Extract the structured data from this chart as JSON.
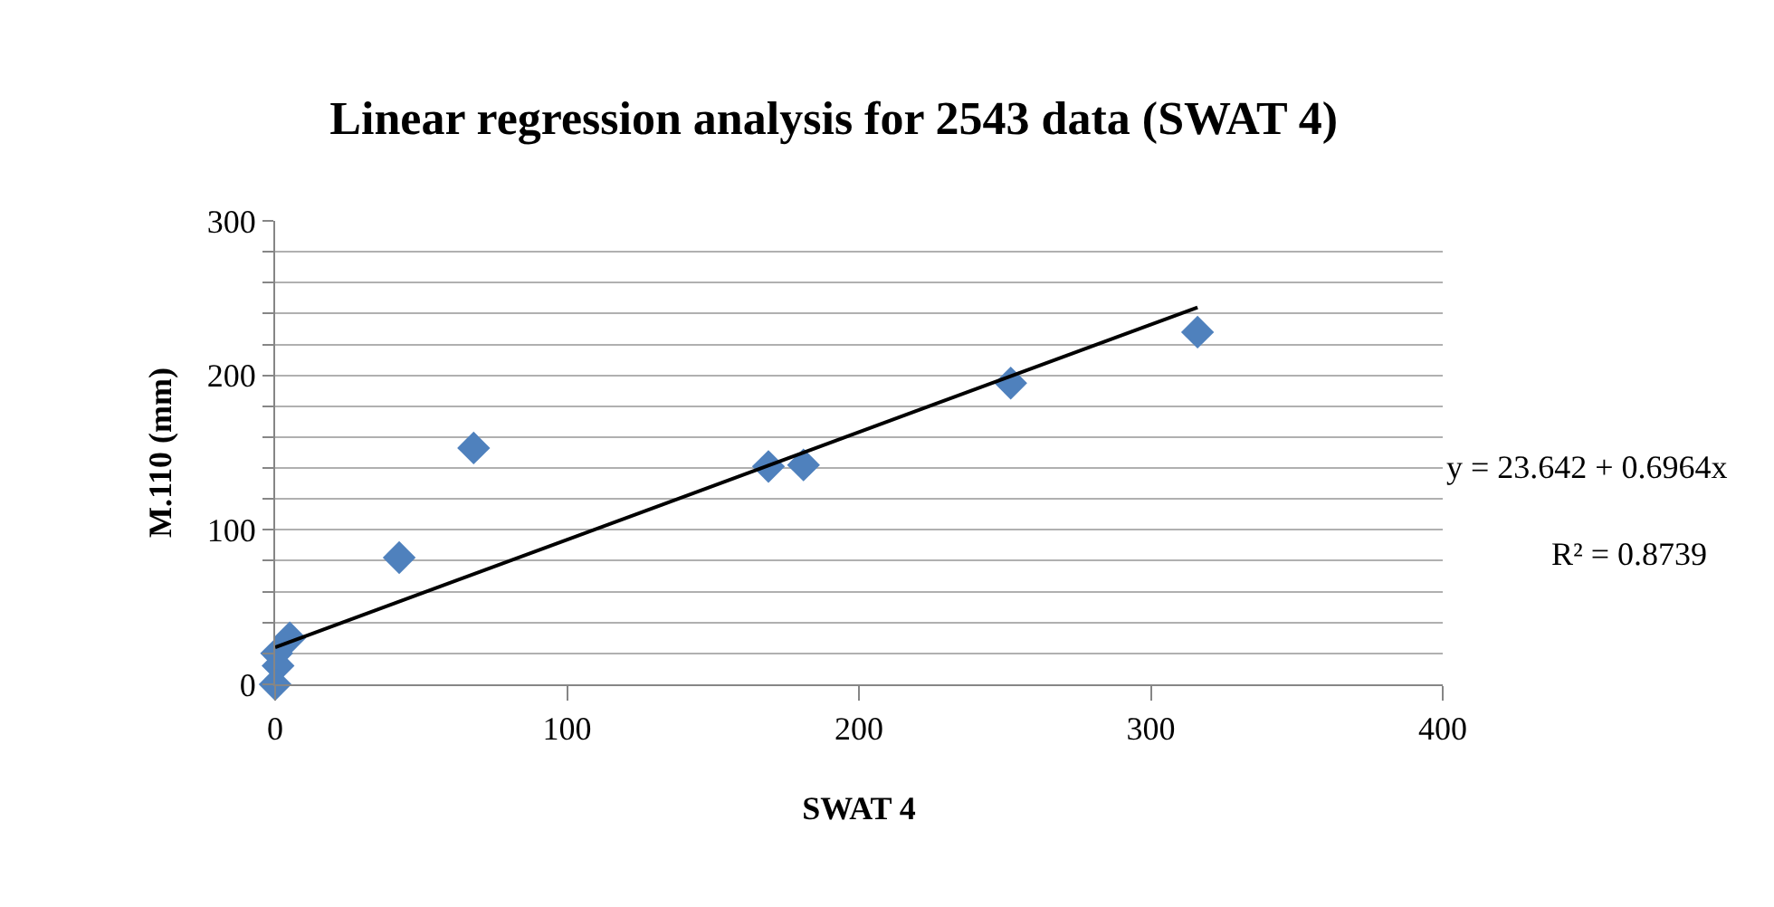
{
  "chart_data": {
    "type": "scatter",
    "title": "Linear regression analysis for 2543 data (SWAT 4)",
    "xlabel": "SWAT 4",
    "ylabel": "M.110 (mm)",
    "x": [
      0,
      1,
      0.5,
      5,
      42.5,
      68,
      169,
      181,
      252,
      316
    ],
    "series": [
      {
        "color": "#4f81bd",
        "values": [
          0,
          12,
          20,
          30,
          82,
          153,
          141,
          142,
          195,
          228
        ],
        "marker": "diamond"
      },
      {
        "type": "line",
        "color": "#000000",
        "x": [
          0,
          316
        ],
        "values": [
          24,
          244
        ],
        "marker": "none",
        "line_style": "solid"
      }
    ],
    "xlim": [
      0,
      400
    ],
    "xticks": [
      0,
      100,
      200,
      300,
      400
    ],
    "ylim": [
      0,
      300
    ],
    "yticks": [
      0,
      {
        "value": 20,
        "label": null
      },
      {
        "value": 40,
        "label": null
      },
      {
        "value": 60,
        "label": null
      },
      {
        "value": 80,
        "label": null
      },
      100,
      {
        "value": 120,
        "label": null
      },
      {
        "value": 140,
        "label": null
      },
      {
        "value": 160,
        "label": null
      },
      {
        "value": 180,
        "label": null
      },
      200,
      {
        "value": 220,
        "label": null
      },
      {
        "value": 240,
        "label": null
      },
      {
        "value": 260,
        "label": null
      },
      {
        "value": 280,
        "label": null
      },
      300
    ],
    "grid": "y",
    "annotations": [
      "y = 23.642 + 0.6964x",
      "R² = 0.8739"
    ]
  }
}
